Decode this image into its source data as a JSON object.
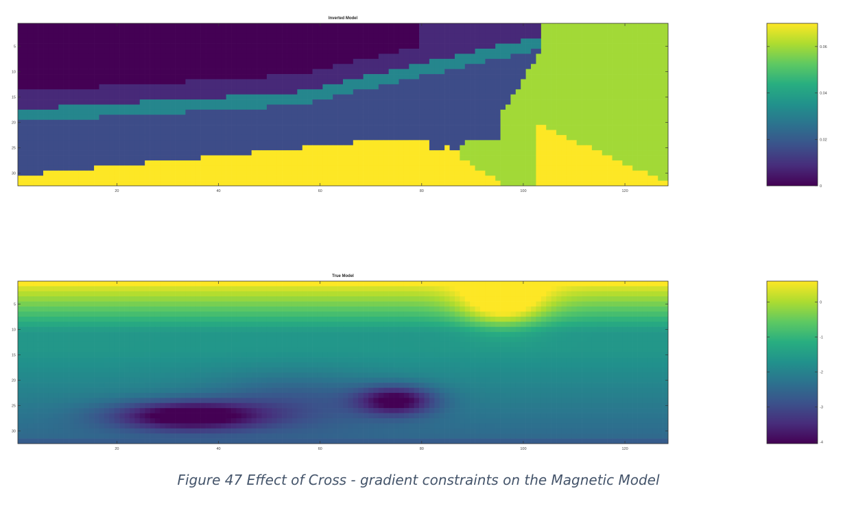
{
  "caption": "Figure 47 Effect of Cross - gradient constraints on the Magnetic Model",
  "colormap": "viridis",
  "colormap_stops": [
    "#440154",
    "#472d7b",
    "#3b528b",
    "#2c728e",
    "#21918c",
    "#28ae80",
    "#5ec962",
    "#addc30",
    "#fde725"
  ],
  "chart_data": [
    {
      "type": "heatmap",
      "title": "Inverted Model",
      "xlabel": "",
      "ylabel": "",
      "x_range": [
        1,
        128
      ],
      "y_range": [
        1,
        32
      ],
      "x_ticks": [
        "20",
        "40",
        "60",
        "80",
        "100",
        "120"
      ],
      "y_ticks": [
        "5",
        "10",
        "15",
        "20",
        "25",
        "30"
      ],
      "y_axis_reversed": true,
      "colorbar": {
        "ticks": [
          "0",
          "0.02",
          "0.04",
          "0.06"
        ],
        "range": [
          0,
          0.07
        ]
      },
      "description_of_field": "Discrete classes: deep purple region upper-left, bands of dark/medium purple and blue dipping to the right, yellow wedge along the base peaking near x=66-80, green region on the right side (x>102) and a green triangle near x=88-100 at depth 24-32.",
      "class_values": {
        "bottom": 0.07,
        "green": 0.06,
        "blue": 0.032,
        "purple2": 0.016,
        "purple1": 0.008,
        "top": 0.0
      }
    },
    {
      "type": "heatmap",
      "title": "True Model",
      "xlabel": "",
      "ylabel": "",
      "x_range": [
        1,
        128
      ],
      "y_range": [
        1,
        32
      ],
      "x_ticks": [
        "20",
        "40",
        "60",
        "80",
        "100",
        "120"
      ],
      "y_ticks": [
        "5",
        "10",
        "15",
        "20",
        "25",
        "30"
      ],
      "y_axis_reversed": true,
      "colorbar": {
        "ticks": [
          "0",
          "-1",
          "-2",
          "-3",
          "-4"
        ],
        "range": [
          -4.05,
          0.6
        ]
      },
      "description_of_field": "Smooth field: yellow near surface (values ~0.5), green-teal mid depth (~-1.5), dark purple lows (~-3.8) around x=25-45 and x=70-80 at depth 24-30, bright high anomaly near x=86-106 at shallow depth."
    }
  ]
}
